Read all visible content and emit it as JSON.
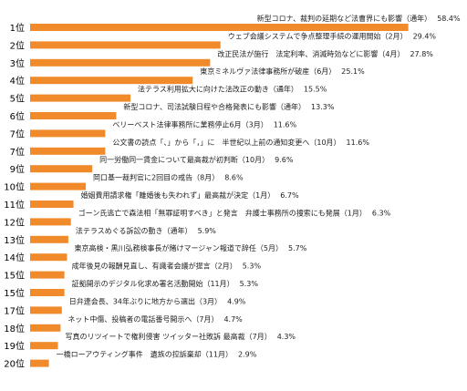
{
  "chart_data": {
    "type": "bar",
    "orientation": "horizontal",
    "bar_color": "#F08A2B",
    "items": [
      {
        "rank": "1位",
        "label": "新型コロナ、裁判の延期など法曹界にも影響（通年）",
        "value": 58.4,
        "value_text": "58.4%"
      },
      {
        "rank": "2位",
        "label": "ウェブ会議システムで争点整理手続の運用開始（2月）",
        "value": 29.4,
        "value_text": "29.4%"
      },
      {
        "rank": "3位",
        "label": "改正民法が施行　法定利率、消滅時効などに影響（4月）",
        "value": 27.8,
        "value_text": "27.8%"
      },
      {
        "rank": "4位",
        "label": "東京ミネルヴァ法律事務所が破産（6月）",
        "value": 25.1,
        "value_text": "25.1%"
      },
      {
        "rank": "5位",
        "label": "法テラス利用拡大に向けた法改正の動き（通年）",
        "value": 15.5,
        "value_text": "15.5%"
      },
      {
        "rank": "6位",
        "label": "新型コロナ、司法試験日程や合格発表にも影響（通年）",
        "value": 13.3,
        "value_text": "13.3%"
      },
      {
        "rank": "7位",
        "label": "ベリーベスト法律事務所に業務停止6月（3月）",
        "value": 11.6,
        "value_text": "11.6%"
      },
      {
        "rank": "7位",
        "label": "公文書の読点「、」から「，」に　半世紀以上前の通知変更へ（10月）",
        "value": 11.6,
        "value_text": "11.6%"
      },
      {
        "rank": "9位",
        "label": "同一労働同一賃金について最高裁が初判断（10月）",
        "value": 9.6,
        "value_text": "9.6%"
      },
      {
        "rank": "10位",
        "label": "岡口基一裁判官に2回目の戒告（8月）",
        "value": 8.6,
        "value_text": "8.6%"
      },
      {
        "rank": "11位",
        "label": "婚姻費用請求権「離婚後も失われず」最高裁が決定（1月）",
        "value": 6.7,
        "value_text": "6.7%"
      },
      {
        "rank": "12位",
        "label": "ゴーン氏逃亡で森法相「無罪証明すべき」と発言　弁護士事務所の捜索にも発展（1月）",
        "value": 6.3,
        "value_text": "6.3%"
      },
      {
        "rank": "13位",
        "label": "法テラスめぐる訴訟の動き（通年）",
        "value": 5.9,
        "value_text": "5.9%"
      },
      {
        "rank": "14位",
        "label": "東京高検・黒川弘務検事長が賭けマージャン報道で辞任（5月）",
        "value": 5.7,
        "value_text": "5.7%"
      },
      {
        "rank": "15位",
        "label": "成年後見の報酬見直し、有識者会議が提言（2月）",
        "value": 5.3,
        "value_text": "5.3%"
      },
      {
        "rank": "15位",
        "label": "証拠開示のデジタル化求め署名活動開始（11月）",
        "value": 5.3,
        "value_text": "5.3%"
      },
      {
        "rank": "17位",
        "label": "日弁連会長、34年ぶりに地方から選出（3月）",
        "value": 4.9,
        "value_text": "4.9%"
      },
      {
        "rank": "18位",
        "label": "ネット中傷、投稿者の電話番号開示へ（7月）",
        "value": 4.7,
        "value_text": "4.7%"
      },
      {
        "rank": "19位",
        "label": "写真のリツイートで権利侵害 ツイッター社敗訴 最高裁（7月）",
        "value": 4.3,
        "value_text": "4.3%"
      },
      {
        "rank": "20位",
        "label": "一橋ローアウティング事件　遺族の控訴棄却（11月）",
        "value": 2.9,
        "value_text": "2.9%"
      }
    ]
  }
}
